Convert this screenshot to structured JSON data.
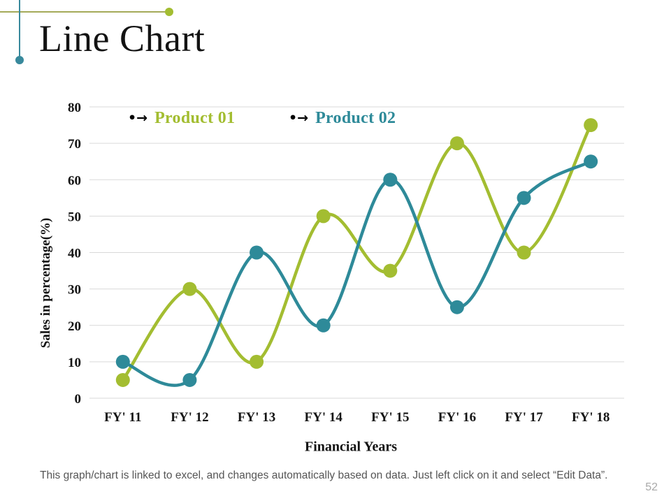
{
  "page": {
    "title": "Line Chart",
    "page_number": "52",
    "footer_note": "This graph/chart is linked to excel, and changes automatically based on data. Just left click on it and select “Edit Data”."
  },
  "colors": {
    "product01": "#a3bd31",
    "product02": "#2e8a99",
    "gridline": "#d9d9d9",
    "tick_text": "#151515",
    "deco_olive_line": "#a4aa58",
    "deco_teal_line": "#38899c",
    "footer_text": "#555555",
    "page_number_text": "#a9a9a9"
  },
  "legend": {
    "marker_glyph": "•→"
  },
  "chart_data": {
    "type": "line",
    "title": "Line Chart",
    "categories": [
      "FY' 11",
      "FY' 12",
      "FY' 13",
      "FY' 14",
      "FY' 15",
      "FY' 16",
      "FY' 17",
      "FY' 18"
    ],
    "series": [
      {
        "name": "Product 01",
        "color": "#a3bd31",
        "values": [
          5,
          30,
          10,
          50,
          35,
          70,
          40,
          75
        ]
      },
      {
        "name": "Product 02",
        "color": "#2e8a99",
        "values": [
          10,
          5,
          40,
          20,
          60,
          25,
          55,
          65
        ]
      }
    ],
    "xlabel": "Financial Years",
    "ylabel": "Sales in percentage(%)",
    "ylim": [
      0,
      80
    ],
    "ytick_step": 10,
    "grid": "horizontal",
    "smooth": true,
    "marker": "circle",
    "legend_position": "top-left-inside"
  }
}
